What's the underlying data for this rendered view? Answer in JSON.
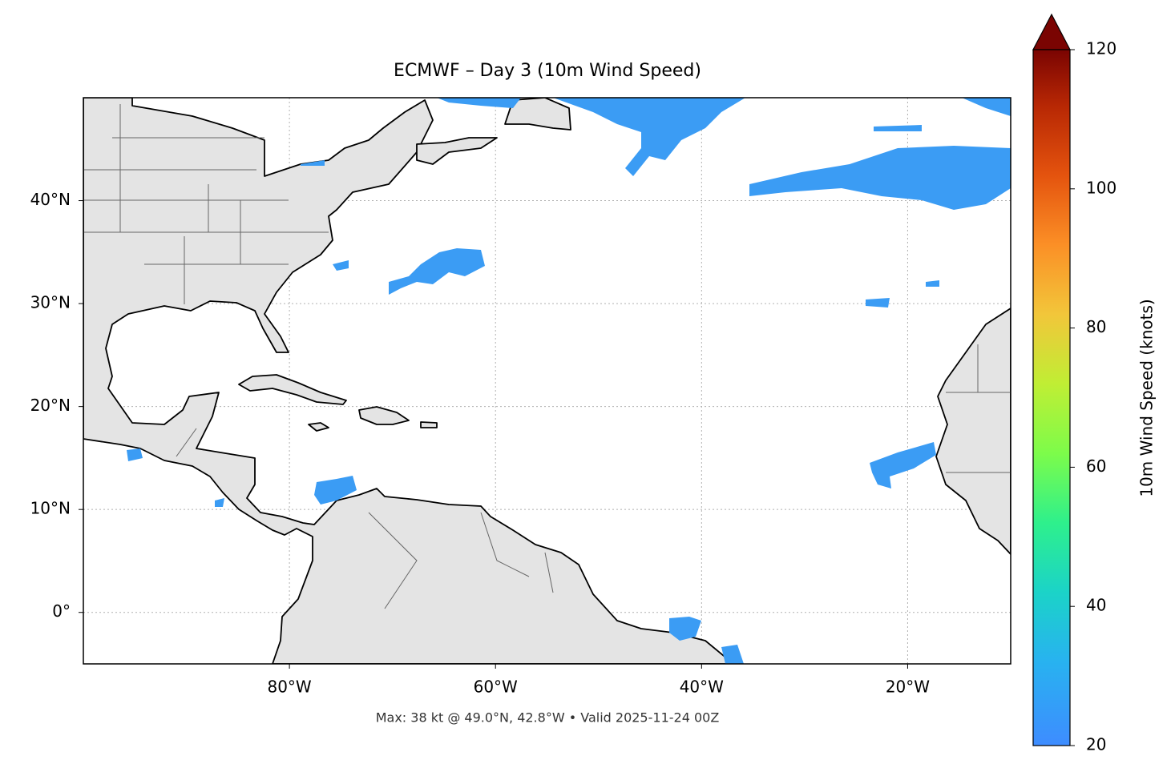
{
  "map": {
    "title": "ECMWF – Day 3 (10m Wind Speed)",
    "footer": "Max: 38 kt @ 49.0°N, 42.8°W • Valid 2025-11-24 00Z",
    "xlim": [
      -100,
      -10
    ],
    "ylim": [
      -5,
      50
    ],
    "xticks": [
      {
        "value": -80,
        "label": "80°W"
      },
      {
        "value": -60,
        "label": "60°W"
      },
      {
        "value": -40,
        "label": "40°W"
      },
      {
        "value": -20,
        "label": "20°W"
      }
    ],
    "yticks": [
      {
        "value": 0,
        "label": "0°"
      },
      {
        "value": 10,
        "label": "10°N"
      },
      {
        "value": 20,
        "label": "20°N"
      },
      {
        "value": 30,
        "label": "30°N"
      },
      {
        "value": 40,
        "label": "40°N"
      }
    ],
    "grid": true
  },
  "colorbar": {
    "label": "10m Wind Speed (knots)",
    "lim": [
      20,
      120
    ],
    "ticks": [
      20,
      40,
      60,
      80,
      100,
      120
    ]
  }
}
